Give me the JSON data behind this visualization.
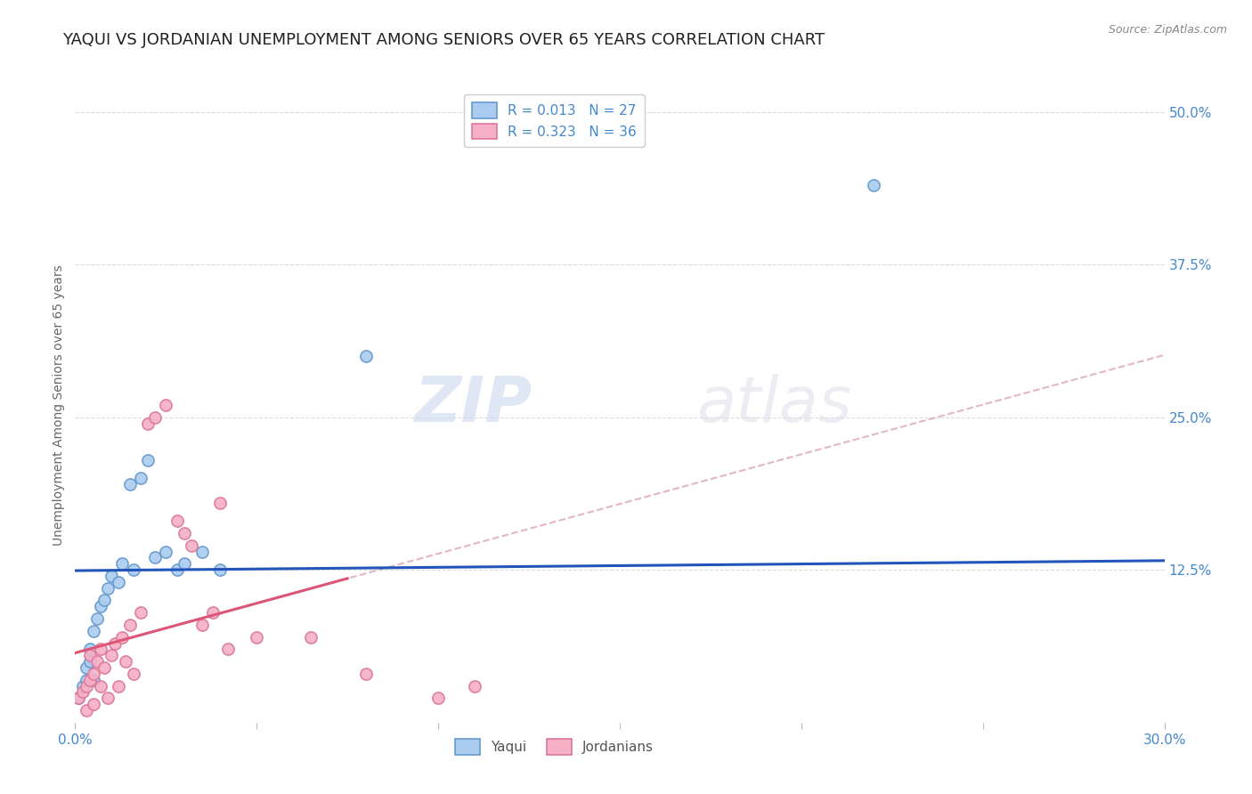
{
  "title": "YAQUI VS JORDANIAN UNEMPLOYMENT AMONG SENIORS OVER 65 YEARS CORRELATION CHART",
  "source": "Source: ZipAtlas.com",
  "ylabel": "Unemployment Among Seniors over 65 years",
  "xlim": [
    0.0,
    0.3
  ],
  "ylim": [
    0.0,
    0.52
  ],
  "yticks": [
    0.0,
    0.125,
    0.25,
    0.375,
    0.5
  ],
  "ytick_labels": [
    "",
    "12.5%",
    "25.0%",
    "37.5%",
    "50.0%"
  ],
  "xticks": [
    0.0,
    0.05,
    0.1,
    0.15,
    0.2,
    0.25,
    0.3
  ],
  "xtick_labels": [
    "0.0%",
    "",
    "",
    "",
    "",
    "",
    "30.0%"
  ],
  "yaqui_color": "#aaccf0",
  "yaqui_edge_color": "#6699cc",
  "jordanian_color": "#f5b0c5",
  "jordanian_edge_color": "#dd7799",
  "yaqui_R": 0.013,
  "yaqui_N": 27,
  "jordanian_R": 0.323,
  "jordanian_N": 36,
  "blue_line_color": "#2255bb",
  "pink_solid_color": "#dd5577",
  "pink_dash_color": "#ddaabb",
  "background_color": "#ffffff",
  "grid_color": "#cccccc",
  "axis_label_color": "#4488cc",
  "yaqui_x": [
    0.001,
    0.002,
    0.003,
    0.003,
    0.004,
    0.004,
    0.005,
    0.005,
    0.006,
    0.007,
    0.008,
    0.009,
    0.01,
    0.012,
    0.013,
    0.015,
    0.016,
    0.018,
    0.02,
    0.022,
    0.025,
    0.028,
    0.03,
    0.035,
    0.04,
    0.08,
    0.22
  ],
  "yaqui_y": [
    0.02,
    0.03,
    0.035,
    0.045,
    0.05,
    0.06,
    0.035,
    0.075,
    0.085,
    0.095,
    0.1,
    0.11,
    0.12,
    0.115,
    0.13,
    0.195,
    0.125,
    0.2,
    0.215,
    0.135,
    0.14,
    0.125,
    0.13,
    0.14,
    0.125,
    0.3,
    0.44
  ],
  "jordanian_x": [
    0.001,
    0.002,
    0.003,
    0.003,
    0.004,
    0.004,
    0.005,
    0.005,
    0.006,
    0.007,
    0.007,
    0.008,
    0.009,
    0.01,
    0.011,
    0.012,
    0.013,
    0.014,
    0.015,
    0.016,
    0.018,
    0.02,
    0.022,
    0.025,
    0.028,
    0.03,
    0.032,
    0.035,
    0.038,
    0.04,
    0.042,
    0.05,
    0.065,
    0.08,
    0.1,
    0.11
  ],
  "jordanian_y": [
    0.02,
    0.025,
    0.03,
    0.01,
    0.035,
    0.055,
    0.04,
    0.015,
    0.05,
    0.03,
    0.06,
    0.045,
    0.02,
    0.055,
    0.065,
    0.03,
    0.07,
    0.05,
    0.08,
    0.04,
    0.09,
    0.245,
    0.25,
    0.26,
    0.165,
    0.155,
    0.145,
    0.08,
    0.09,
    0.18,
    0.06,
    0.07,
    0.07,
    0.04,
    0.02,
    0.03
  ],
  "marker_size": 90,
  "watermark_zip": "ZIP",
  "watermark_atlas": "atlas",
  "title_fontsize": 13,
  "axis_fontsize": 10,
  "tick_fontsize": 11
}
